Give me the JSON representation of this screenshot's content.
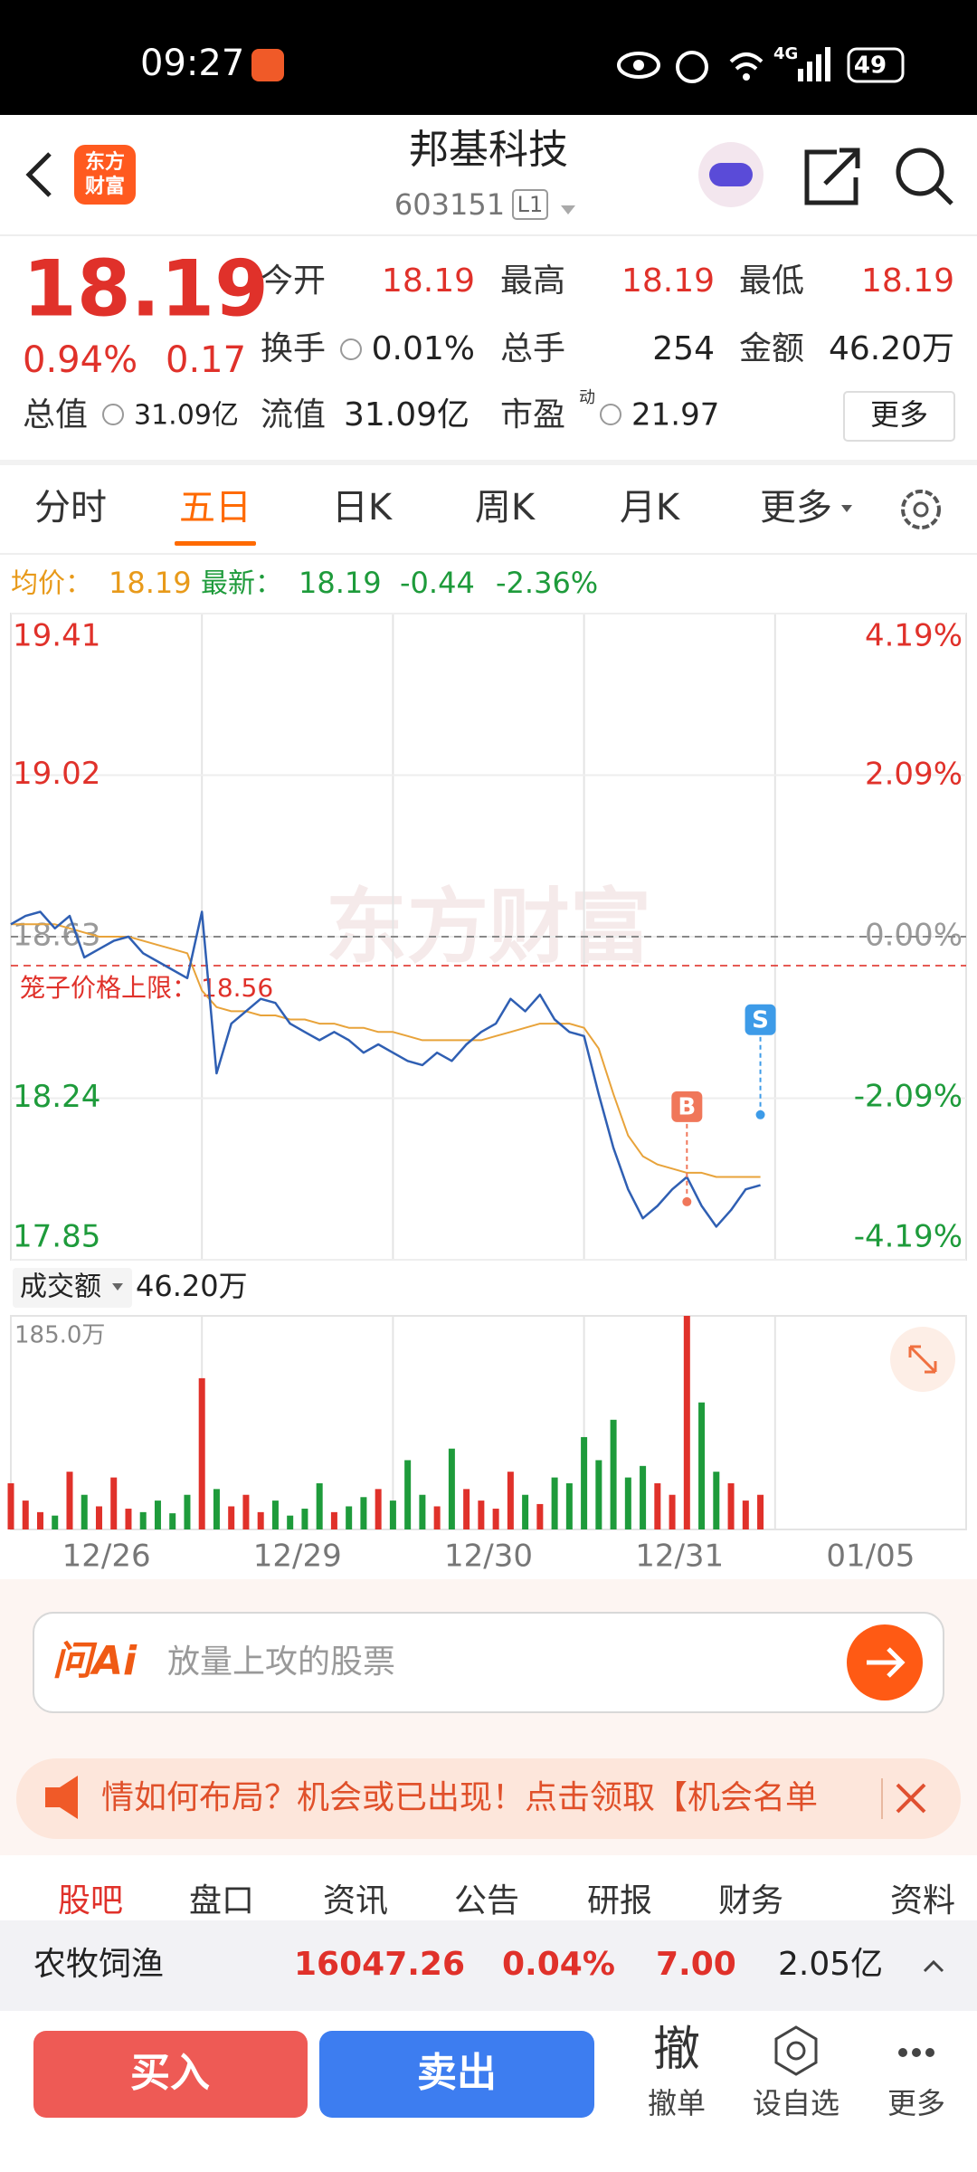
{
  "status": {
    "time": "09:27",
    "network": "4G",
    "battery": "49"
  },
  "header": {
    "logo": [
      "东方",
      "财富"
    ],
    "title": "邦基科技",
    "code": "603151",
    "level": "L1"
  },
  "quote": {
    "price": "18.19",
    "change_pct": "0.94%",
    "change": "0.17",
    "fields": [
      {
        "label": "今开",
        "value": "18.19"
      },
      {
        "label": "最高",
        "value": "18.19"
      },
      {
        "label": "最低",
        "value": "18.19"
      },
      {
        "label": "换手",
        "value": "0.01%"
      },
      {
        "label": "总手",
        "value": "254"
      },
      {
        "label": "金额",
        "value": "46.20万"
      }
    ],
    "total_value": {
      "label": "总值",
      "value": "31.09亿"
    },
    "float_value": {
      "label": "流值",
      "value": "31.09亿"
    },
    "pe": {
      "label": "市盈",
      "tag": "动",
      "value": "21.97"
    },
    "more": "更多"
  },
  "tabs": {
    "items": [
      "分时",
      "五日",
      "日K",
      "周K",
      "月K",
      "更多"
    ],
    "selected": 1
  },
  "info": {
    "avg_label": "均价：",
    "avg": "18.19",
    "last_label": "最新：",
    "last": "18.19",
    "change": "-0.44",
    "change_pct": "-2.36%"
  },
  "chart": {
    "type": "line",
    "watermark": "东方财富",
    "x": [
      0,
      1,
      2,
      3,
      4,
      5,
      6,
      7,
      8,
      9,
      10,
      11,
      12,
      13,
      14,
      15,
      16,
      17,
      18,
      19,
      20,
      21,
      22,
      23,
      24,
      25,
      26,
      27,
      28,
      29,
      30,
      31,
      32,
      33,
      34,
      35,
      36,
      37,
      38,
      39,
      40,
      41,
      42,
      43,
      44,
      45,
      46,
      47,
      48,
      49,
      50,
      51
    ],
    "xlim": [
      0,
      65
    ],
    "xticks": [
      {
        "value": 6.5,
        "label": "12/26"
      },
      {
        "value": 19.5,
        "label": "12/29"
      },
      {
        "value": 32.5,
        "label": "12/30"
      },
      {
        "value": 45.5,
        "label": "12/31"
      },
      {
        "value": 58.5,
        "label": "01/05"
      }
    ],
    "ylim": [
      17.85,
      19.41
    ],
    "yticks": [
      17.85,
      18.24,
      18.63,
      19.02,
      19.41
    ],
    "y2lim": [
      -4.19,
      4.19
    ],
    "y2ticks": [
      {
        "value": -4.19,
        "label": "-4.19%"
      },
      {
        "value": -2.09,
        "label": "-2.09%"
      },
      {
        "value": 0,
        "label": "0.00%"
      },
      {
        "value": 2.09,
        "label": "2.09%"
      },
      {
        "value": 4.19,
        "label": "4.19%"
      }
    ],
    "prev_close": 18.63,
    "series": [
      {
        "color": "#2f5fb3",
        "values": [
          18.66,
          18.68,
          18.69,
          18.65,
          18.68,
          18.58,
          18.6,
          18.62,
          18.63,
          18.59,
          18.57,
          18.55,
          18.53,
          18.69,
          18.3,
          18.42,
          18.45,
          18.48,
          18.47,
          18.42,
          18.4,
          18.38,
          18.4,
          18.38,
          18.35,
          18.37,
          18.35,
          18.33,
          18.32,
          18.35,
          18.33,
          18.37,
          18.4,
          18.42,
          18.48,
          18.45,
          18.49,
          18.43,
          18.4,
          18.39,
          18.25,
          18.12,
          18.02,
          17.95,
          17.98,
          18.02,
          18.05,
          17.98,
          17.93,
          17.97,
          18.02,
          18.03
        ]
      },
      {
        "color": "#e8a33a",
        "values": [
          18.66,
          18.66,
          18.66,
          18.66,
          18.65,
          18.64,
          18.63,
          18.63,
          18.63,
          18.62,
          18.61,
          18.6,
          18.59,
          18.5,
          18.46,
          18.45,
          18.45,
          18.44,
          18.44,
          18.43,
          18.43,
          18.42,
          18.42,
          18.41,
          18.41,
          18.4,
          18.4,
          18.39,
          18.38,
          18.38,
          18.38,
          18.38,
          18.38,
          18.39,
          18.4,
          18.41,
          18.42,
          18.42,
          18.42,
          18.41,
          18.36,
          18.25,
          18.15,
          18.1,
          18.08,
          18.07,
          18.06,
          18.06,
          18.05,
          18.05,
          18.05,
          18.05
        ]
      }
    ],
    "cage_limit": {
      "label": "笼子价格上限：",
      "value": 18.56,
      "color": "#e0312a"
    },
    "markers": [
      {
        "label": "B",
        "x": 46,
        "value": 17.99,
        "color": "#f0775a"
      },
      {
        "label": "S",
        "x": 51,
        "value": 18.2,
        "color": "#3d9be8"
      }
    ],
    "up_color": "#e0312a",
    "down_color": "#1e9b3b",
    "flat_color": "#999999"
  },
  "volume": {
    "label": "成交额",
    "value": "46.20万",
    "ylim": [
      0,
      185
    ],
    "yticks": [
      {
        "value": 185,
        "label": "185.0万"
      }
    ],
    "values": [
      40,
      25,
      15,
      12,
      50,
      30,
      20,
      45,
      18,
      15,
      25,
      14,
      30,
      131,
      35,
      20,
      30,
      15,
      25,
      12,
      18,
      40,
      15,
      20,
      28,
      35,
      25,
      60,
      30,
      20,
      70,
      35,
      25,
      18,
      50,
      30,
      22,
      45,
      40,
      80,
      60,
      95,
      45,
      55,
      40,
      30,
      185,
      110,
      50,
      40,
      25,
      30
    ]
  },
  "ai": {
    "logo": "问Ai",
    "placeholder": "放量上攻的股票"
  },
  "banner": {
    "text": "情如何布局？机会或已出现！点击领取【机会名单"
  },
  "bottom_tabs": {
    "items": [
      "股吧",
      "盘口",
      "资讯",
      "公告",
      "研报",
      "财务",
      "资料"
    ],
    "selected": 0
  },
  "index": {
    "name": "农牧饲渔",
    "value": "16047.26",
    "change_pct": "0.04%",
    "change": "7.00",
    "amount": "2.05亿"
  },
  "actions": {
    "buy": "买入",
    "sell": "卖出",
    "cancel_icon": "撤",
    "cancel": "撤单",
    "watch": "设自选",
    "more": "更多"
  }
}
